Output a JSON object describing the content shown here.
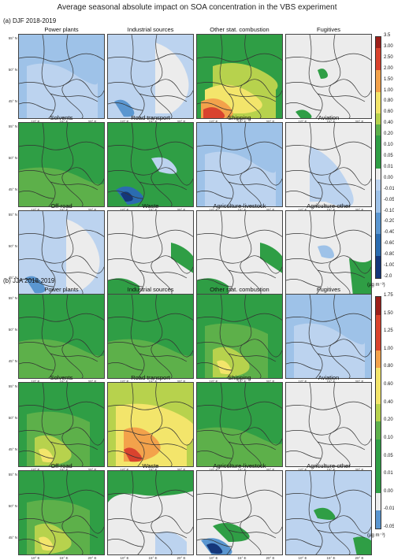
{
  "title": "Average seasonal absolute impact on SOA concentration in the VBS experiment",
  "colors": {
    "grey": "#ececec",
    "lightblue": "#bcd3ef",
    "blue1": "#9ec2e8",
    "blue2": "#5a96d0",
    "blue3": "#2b6cb0",
    "darkblue": "#14377a",
    "green": "#2f9e45",
    "green2": "#5db04a",
    "yellowgreen": "#b7d24d",
    "yellow": "#f3e56b",
    "orange": "#f3a24b",
    "red": "#d9432e",
    "darkred": "#9c1f1a",
    "border": "#333333"
  },
  "sections": [
    {
      "label": "(a) DJF 2018-2019",
      "colorbar": {
        "ticks": [
          "3.5",
          "3.00",
          "2.50",
          "2.00",
          "1.50",
          "1.00",
          "0.80",
          "0.60",
          "0.40",
          "0.20",
          "0.10",
          "0.05",
          "0.01",
          "0.00",
          "-0.01",
          "-0.05",
          "-0.10",
          "-0.20",
          "-0.40",
          "-0.60",
          "-0.80",
          "-1.00",
          "-2.0"
        ],
        "unit": "(µg m⁻³)"
      },
      "panels": [
        {
          "title": "Power plants",
          "fill": "lightblue",
          "style": "blue-light"
        },
        {
          "title": "Industrial sources",
          "fill": "lightblue",
          "style": "blue-mixed"
        },
        {
          "title": "Other stat. combustion",
          "fill": "green",
          "style": "green-hot"
        },
        {
          "title": "Fugitives",
          "fill": "grey",
          "style": "grey-spots"
        },
        {
          "title": "Solvents",
          "fill": "green",
          "style": "green-solid"
        },
        {
          "title": "Road transport",
          "fill": "green",
          "style": "green-blue"
        },
        {
          "title": "Shipping",
          "fill": "lightblue",
          "style": "blue-light"
        },
        {
          "title": "Aviation",
          "fill": "grey",
          "style": "grey-light-blue"
        },
        {
          "title": "Off-road",
          "fill": "lightblue",
          "style": "blue-mixed"
        },
        {
          "title": "Waste",
          "fill": "grey",
          "style": "grey-green-edges"
        },
        {
          "title": "Agriculture-livestock",
          "fill": "grey",
          "style": "grey-green-edges"
        },
        {
          "title": "Agriculture-other",
          "fill": "grey",
          "style": "grey-green-right"
        }
      ]
    },
    {
      "label": "(b) JJA 2018-2019",
      "colorbar": {
        "ticks": [
          "1.75",
          "1.50",
          "1.25",
          "1.00",
          "0.80",
          "0.60",
          "0.40",
          "0.20",
          "0.10",
          "0.05",
          "0.01",
          "0.00",
          "-0.01",
          "-0.05"
        ],
        "unit": "(µg m⁻³)"
      },
      "panels": [
        {
          "title": "Power plants",
          "fill": "green",
          "style": "green-solid"
        },
        {
          "title": "Industrial sources",
          "fill": "green",
          "style": "green-solid"
        },
        {
          "title": "Other stat. combustion",
          "fill": "green",
          "style": "green-warm"
        },
        {
          "title": "Fugitives",
          "fill": "lightblue",
          "style": "blue-light"
        },
        {
          "title": "Solvents",
          "fill": "green",
          "style": "green-warm"
        },
        {
          "title": "Road transport",
          "fill": "yellowgreen",
          "style": "yellow-hot"
        },
        {
          "title": "Shipping",
          "fill": "green",
          "style": "green-solid"
        },
        {
          "title": "Aviation",
          "fill": "grey",
          "style": "grey-empty"
        },
        {
          "title": "Off-road",
          "fill": "green",
          "style": "green-warm"
        },
        {
          "title": "Waste",
          "fill": "grey",
          "style": "grey-green-top"
        },
        {
          "title": "Agriculture-livestock",
          "fill": "grey",
          "style": "grey-green-blue"
        },
        {
          "title": "Agriculture-other",
          "fill": "lightblue",
          "style": "blue-green-spot"
        }
      ]
    }
  ],
  "axes": {
    "lat_ticks": [
      "55° N",
      "50° N",
      "45° N"
    ],
    "lon_ticks": [
      "10° E",
      "15° E",
      "20° E"
    ]
  }
}
